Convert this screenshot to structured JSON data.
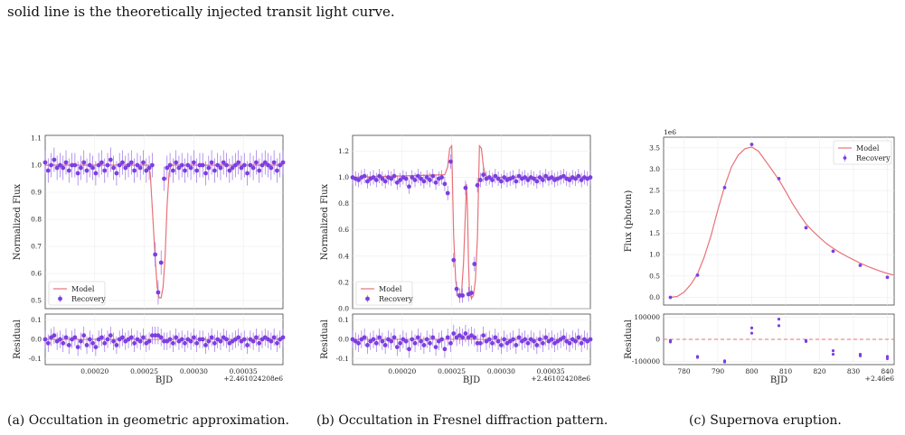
{
  "intro_text": "solid line is the theoretically injected transit light curve.",
  "colors": {
    "model": "#e8727a",
    "recovery": "#7c3fe0",
    "errorbar": "#9a6ee6",
    "residual_zero": "#e8727a",
    "grid": "#ececec"
  },
  "chart_data": [
    {
      "type": "scatter",
      "caption": "(a) Occultation in geometric approximation.",
      "xlabel": "BJD",
      "ylabel": "Normalized Flux",
      "residual_ylabel": "Residual",
      "x_offset_label": "+2.461024208e6",
      "x_ticks": [
        "0.00020",
        "0.00025",
        "0.00030",
        "0.00035"
      ],
      "y_ticks": [
        "0.5",
        "0.6",
        "0.7",
        "0.8",
        "0.9",
        "1.0",
        "1.1"
      ],
      "residual_ticks": [
        "-0.1",
        "0.0",
        "0.1"
      ],
      "xlim": [
        0.00015,
        0.00039
      ],
      "ylim": [
        0.47,
        1.11
      ],
      "residual_ylim": [
        -0.13,
        0.13
      ],
      "legend": [
        "Model",
        "Recovery"
      ],
      "legend_position": "bottom-left",
      "model_x": [
        0.00015,
        0.000254,
        0.000256,
        0.000258,
        0.000261,
        0.000263,
        0.000265,
        0.000267,
        0.000269,
        0.000271,
        0.000273,
        0.000275,
        0.000277,
        0.00039
      ],
      "model_y": [
        1.0,
        1.0,
        0.97,
        0.85,
        0.66,
        0.55,
        0.51,
        0.51,
        0.55,
        0.66,
        0.85,
        0.97,
        1.0,
        1.0
      ],
      "points": {
        "x": [
          0.00015,
          0.000153,
          0.000156,
          0.000159,
          0.000162,
          0.000165,
          0.000168,
          0.000171,
          0.000174,
          0.000177,
          0.00018,
          0.000183,
          0.000186,
          0.000189,
          0.000192,
          0.000195,
          0.000198,
          0.000201,
          0.000204,
          0.000207,
          0.00021,
          0.000213,
          0.000216,
          0.000219,
          0.000222,
          0.000225,
          0.000228,
          0.000231,
          0.000234,
          0.000237,
          0.00024,
          0.000243,
          0.000246,
          0.000249,
          0.000252,
          0.000255,
          0.000258,
          0.000261,
          0.000264,
          0.000267,
          0.00027,
          0.000273,
          0.000276,
          0.000279,
          0.000282,
          0.000285,
          0.000288,
          0.000291,
          0.000294,
          0.000297,
          0.0003,
          0.000303,
          0.000306,
          0.000309,
          0.000312,
          0.000315,
          0.000318,
          0.000321,
          0.000324,
          0.000327,
          0.00033,
          0.000333,
          0.000336,
          0.000339,
          0.000342,
          0.000345,
          0.000348,
          0.000351,
          0.000354,
          0.000357,
          0.00036,
          0.000363,
          0.000366,
          0.000369,
          0.000372,
          0.000375,
          0.000378,
          0.000381,
          0.000384,
          0.000387,
          0.00039
        ],
        "y": [
          1.01,
          0.98,
          1.0,
          1.02,
          0.99,
          1.0,
          0.99,
          1.01,
          0.98,
          1.0,
          1.0,
          0.97,
          0.99,
          1.01,
          0.98,
          1.0,
          0.99,
          0.97,
          1.0,
          1.01,
          0.98,
          1.0,
          1.02,
          0.99,
          0.97,
          1.0,
          1.01,
          0.99,
          1.0,
          1.01,
          0.98,
          1.0,
          0.99,
          1.01,
          0.98,
          0.99,
          1.0,
          0.67,
          0.53,
          0.64,
          0.95,
          0.99,
          1.0,
          0.98,
          1.01,
          0.99,
          1.0,
          0.98,
          1.0,
          0.99,
          1.01,
          0.98,
          1.0,
          1.0,
          0.97,
          0.99,
          1.01,
          0.98,
          1.0,
          0.99,
          1.01,
          1.0,
          0.98,
          0.99,
          1.0,
          1.01,
          0.99,
          1.0,
          0.97,
          1.0,
          0.99,
          1.01,
          0.98,
          1.0,
          1.01,
          1.0,
          0.99,
          1.01,
          0.98,
          1.0,
          1.01
        ],
        "yerr": 0.045
      },
      "residuals": [
        0.0,
        -0.02,
        0.01,
        0.02,
        -0.01,
        0.0,
        -0.02,
        0.01,
        -0.03,
        0.0,
        0.01,
        -0.04,
        -0.01,
        0.02,
        -0.03,
        0.0,
        -0.02,
        -0.04,
        0.0,
        0.01,
        -0.02,
        0.0,
        0.02,
        -0.01,
        -0.03,
        0.0,
        0.01,
        -0.01,
        0.0,
        0.01,
        -0.02,
        0.0,
        -0.01,
        0.01,
        -0.02,
        -0.01,
        0.02,
        0.02,
        0.02,
        0.01,
        -0.01,
        -0.01,
        0.0,
        -0.02,
        0.01,
        -0.01,
        0.0,
        -0.02,
        0.0,
        -0.01,
        0.01,
        -0.02,
        0.0,
        0.0,
        -0.03,
        -0.01,
        0.01,
        -0.02,
        0.0,
        -0.01,
        0.01,
        0.0,
        -0.02,
        -0.01,
        0.0,
        0.01,
        -0.01,
        0.0,
        -0.03,
        0.0,
        -0.01,
        0.01,
        -0.02,
        0.0,
        0.01,
        0.0,
        -0.01,
        0.01,
        -0.02,
        0.0,
        0.01
      ],
      "residual_err": 0.045
    },
    {
      "type": "scatter",
      "caption": "(b) Occultation in Fresnel diffraction pattern.",
      "xlabel": "BJD",
      "ylabel": "Normalized Flux",
      "residual_ylabel": "Residual",
      "x_offset_label": "+2.461024208e6",
      "x_ticks": [
        "0.00020",
        "0.00025",
        "0.00030",
        "0.00035"
      ],
      "y_ticks": [
        "0.0",
        "0.2",
        "0.4",
        "0.6",
        "0.8",
        "1.0",
        "1.2"
      ],
      "residual_ticks": [
        "-0.1",
        "0.0",
        "0.1"
      ],
      "xlim": [
        0.00015,
        0.00039
      ],
      "ylim": [
        0.0,
        1.32
      ],
      "residual_ylim": [
        -0.13,
        0.13
      ],
      "legend": [
        "Model",
        "Recovery"
      ],
      "legend_position": "bottom-left",
      "model_x": [
        0.00015,
        0.000243,
        0.000246,
        0.000248,
        0.00025,
        0.000252,
        0.000254,
        0.000256,
        0.000258,
        0.00026,
        0.000262,
        0.000264,
        0.000265,
        0.000266,
        0.000267,
        0.000268,
        0.00027,
        0.000272,
        0.000274,
        0.000276,
        0.000278,
        0.00028,
        0.000282,
        0.000284,
        0.000286,
        0.000288,
        0.00039
      ],
      "model_y": [
        1.0,
        1.02,
        1.08,
        1.22,
        1.24,
        0.55,
        0.22,
        0.1,
        0.08,
        0.12,
        0.35,
        0.75,
        0.95,
        0.75,
        0.35,
        0.12,
        0.08,
        0.1,
        0.22,
        0.55,
        1.24,
        1.22,
        1.08,
        1.02,
        1.0,
        1.0,
        1.0
      ],
      "points": {
        "x": [
          0.00015,
          0.000153,
          0.000156,
          0.000159,
          0.000162,
          0.000165,
          0.000168,
          0.000171,
          0.000174,
          0.000177,
          0.00018,
          0.000183,
          0.000186,
          0.000189,
          0.000192,
          0.000195,
          0.000198,
          0.000201,
          0.000204,
          0.000207,
          0.00021,
          0.000213,
          0.000216,
          0.000219,
          0.000222,
          0.000225,
          0.000228,
          0.000231,
          0.000234,
          0.000237,
          0.00024,
          0.000243,
          0.000246,
          0.000249,
          0.000252,
          0.000255,
          0.000258,
          0.000261,
          0.000264,
          0.000267,
          0.00027,
          0.000273,
          0.000276,
          0.000279,
          0.000282,
          0.000285,
          0.000288,
          0.000291,
          0.000294,
          0.000297,
          0.0003,
          0.000303,
          0.000306,
          0.000309,
          0.000312,
          0.000315,
          0.000318,
          0.000321,
          0.000324,
          0.000327,
          0.00033,
          0.000333,
          0.000336,
          0.000339,
          0.000342,
          0.000345,
          0.000348,
          0.000351,
          0.000354,
          0.000357,
          0.00036,
          0.000363,
          0.000366,
          0.000369,
          0.000372,
          0.000375,
          0.000378,
          0.000381,
          0.000384,
          0.000387,
          0.00039
        ],
        "y": [
          1.0,
          0.99,
          0.98,
          1.0,
          1.01,
          0.97,
          0.99,
          1.0,
          0.98,
          1.01,
          0.99,
          0.97,
          1.0,
          0.99,
          1.01,
          0.96,
          0.98,
          1.0,
          0.99,
          0.93,
          1.0,
          0.98,
          1.01,
          0.99,
          0.97,
          1.0,
          0.98,
          1.01,
          0.96,
          0.99,
          1.0,
          0.95,
          0.88,
          1.12,
          0.37,
          0.15,
          0.1,
          0.1,
          0.92,
          0.11,
          0.12,
          0.34,
          0.94,
          0.98,
          1.02,
          0.99,
          1.0,
          0.98,
          1.01,
          0.99,
          0.97,
          1.0,
          0.98,
          0.99,
          1.0,
          0.97,
          1.01,
          0.99,
          1.0,
          0.98,
          1.0,
          0.99,
          0.97,
          1.0,
          0.98,
          1.01,
          0.99,
          1.0,
          0.98,
          0.99,
          1.0,
          1.01,
          0.99,
          0.98,
          1.0,
          0.99,
          1.01,
          0.98,
          1.0,
          0.99,
          1.0
        ],
        "yerr": 0.055
      },
      "residuals": [
        0.0,
        -0.01,
        -0.02,
        0.0,
        0.01,
        -0.03,
        -0.01,
        0.0,
        -0.02,
        0.01,
        -0.01,
        -0.03,
        0.0,
        -0.01,
        0.01,
        -0.04,
        -0.02,
        0.0,
        -0.01,
        -0.05,
        0.0,
        -0.02,
        0.01,
        -0.01,
        -0.03,
        0.0,
        -0.02,
        0.01,
        -0.04,
        -0.01,
        0.0,
        -0.05,
        0.01,
        -0.02,
        0.03,
        0.01,
        0.02,
        0.01,
        0.03,
        0.01,
        0.02,
        0.01,
        -0.02,
        -0.02,
        0.02,
        -0.01,
        0.0,
        -0.02,
        0.01,
        -0.01,
        -0.03,
        0.0,
        -0.02,
        -0.01,
        0.0,
        -0.03,
        0.01,
        -0.01,
        0.0,
        -0.02,
        0.0,
        -0.01,
        -0.03,
        0.0,
        -0.02,
        0.01,
        -0.01,
        0.0,
        -0.02,
        -0.01,
        0.0,
        0.01,
        -0.01,
        -0.02,
        0.0,
        -0.01,
        0.01,
        -0.02,
        0.0,
        -0.01,
        0.0
      ],
      "residual_err": 0.045
    },
    {
      "type": "scatter",
      "caption": "(c) Supernova eruption.",
      "xlabel": "BJD",
      "ylabel": "Flux (photon)",
      "residual_ylabel": "Residual",
      "y_multiplier_label": "1e6",
      "x_offset_label": "+2.46e6",
      "x_ticks": [
        "780",
        "790",
        "800",
        "810",
        "820",
        "830",
        "840"
      ],
      "x_tick_values": [
        780,
        790,
        800,
        810,
        820,
        830,
        840
      ],
      "y_ticks": [
        "0.0",
        "0.5",
        "1.0",
        "1.5",
        "2.0",
        "2.5",
        "3.0",
        "3.5"
      ],
      "y_tick_values": [
        0.0,
        0.5,
        1.0,
        1.5,
        2.0,
        2.5,
        3.0,
        3.5
      ],
      "residual_ticks": [
        "-100000",
        "0",
        "100000"
      ],
      "residual_tick_values": [
        -100000,
        0,
        100000
      ],
      "xlim": [
        774,
        842
      ],
      "ylim": [
        -0.18,
        3.75
      ],
      "residual_ylim": [
        -115000,
        115000
      ],
      "legend": [
        "Model",
        "Recovery"
      ],
      "legend_position": "top-right",
      "model_x": [
        776,
        778,
        780,
        782,
        784,
        786,
        788,
        790,
        792,
        794,
        796,
        798,
        800,
        802,
        804,
        806,
        808,
        810,
        812,
        814,
        816,
        818,
        820,
        822,
        824,
        826,
        828,
        830,
        832,
        834,
        836,
        838,
        840,
        842
      ],
      "model_y": [
        0.0,
        0.02,
        0.12,
        0.3,
        0.55,
        0.95,
        1.45,
        2.05,
        2.6,
        3.05,
        3.33,
        3.48,
        3.52,
        3.42,
        3.2,
        2.98,
        2.75,
        2.48,
        2.2,
        1.95,
        1.72,
        1.55,
        1.4,
        1.26,
        1.15,
        1.05,
        0.96,
        0.88,
        0.8,
        0.73,
        0.67,
        0.61,
        0.56,
        0.52
      ],
      "points": {
        "x": [
          776,
          784,
          792,
          800,
          808,
          816,
          824,
          832,
          840
        ],
        "y": [
          0.0,
          0.52,
          2.57,
          3.58,
          2.78,
          1.63,
          1.08,
          0.75,
          0.47
        ],
        "yerr": 0.025
      },
      "residual_pairs": [
        [
          776,
          -5000
        ],
        [
          776,
          -12000
        ],
        [
          784,
          -78000
        ],
        [
          784,
          -82000
        ],
        [
          792,
          -98000
        ],
        [
          792,
          -103000
        ],
        [
          800,
          52000
        ],
        [
          800,
          28000
        ],
        [
          808,
          92000
        ],
        [
          808,
          62000
        ],
        [
          816,
          -5000
        ],
        [
          816,
          -10000
        ],
        [
          824,
          -52000
        ],
        [
          824,
          -68000
        ],
        [
          832,
          -68000
        ],
        [
          832,
          -75000
        ],
        [
          840,
          -78000
        ],
        [
          840,
          -88000
        ]
      ]
    }
  ]
}
